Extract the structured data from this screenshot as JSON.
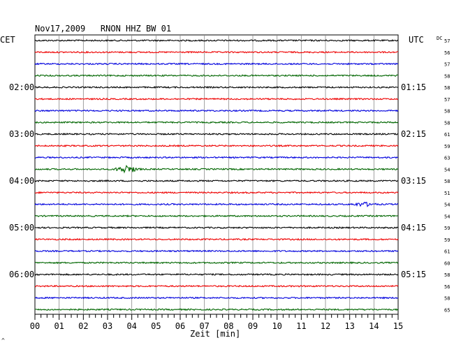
{
  "chart_data": {
    "type": "line",
    "title": "Nov17,2009   RNON HHZ BW 01",
    "left_zone_label": "CET",
    "right_zone_label": "UTC",
    "dc_header": "DC",
    "xlabel": "Zeit [min]",
    "xlim": [
      0,
      15
    ],
    "x_ticks": [
      "00",
      "01",
      "02",
      "03",
      "04",
      "05",
      "06",
      "07",
      "08",
      "09",
      "10",
      "11",
      "12",
      "13",
      "14",
      "15"
    ],
    "grid": true,
    "trace_colors": [
      "#000000",
      "#ee0000",
      "#0000dd",
      "#006600"
    ],
    "left_time_labels": [
      {
        "trace": 4,
        "text": "02:00"
      },
      {
        "trace": 8,
        "text": "03:00"
      },
      {
        "trace": 12,
        "text": "04:00"
      },
      {
        "trace": 16,
        "text": "05:00"
      },
      {
        "trace": 20,
        "text": "06:00"
      }
    ],
    "right_time_labels": [
      {
        "trace": 4,
        "text": "01:15"
      },
      {
        "trace": 8,
        "text": "02:15"
      },
      {
        "trace": 12,
        "text": "03:15"
      },
      {
        "trace": 16,
        "text": "04:15"
      },
      {
        "trace": 20,
        "text": "05:15"
      }
    ],
    "dc_values": [
      "57",
      "56",
      "57",
      "58",
      "58",
      "57",
      "58",
      "58",
      "61",
      "59",
      "63",
      "54",
      "58",
      "51",
      "54",
      "54",
      "59",
      "59",
      "61",
      "60",
      "58",
      "56",
      "58",
      "65"
    ],
    "events": [
      {
        "trace": 11,
        "minute": 3.8,
        "amplitude": 2.6
      },
      {
        "trace": 14,
        "minute": 13.6,
        "amplitude": 1.3
      }
    ],
    "corner_mark": "^"
  }
}
